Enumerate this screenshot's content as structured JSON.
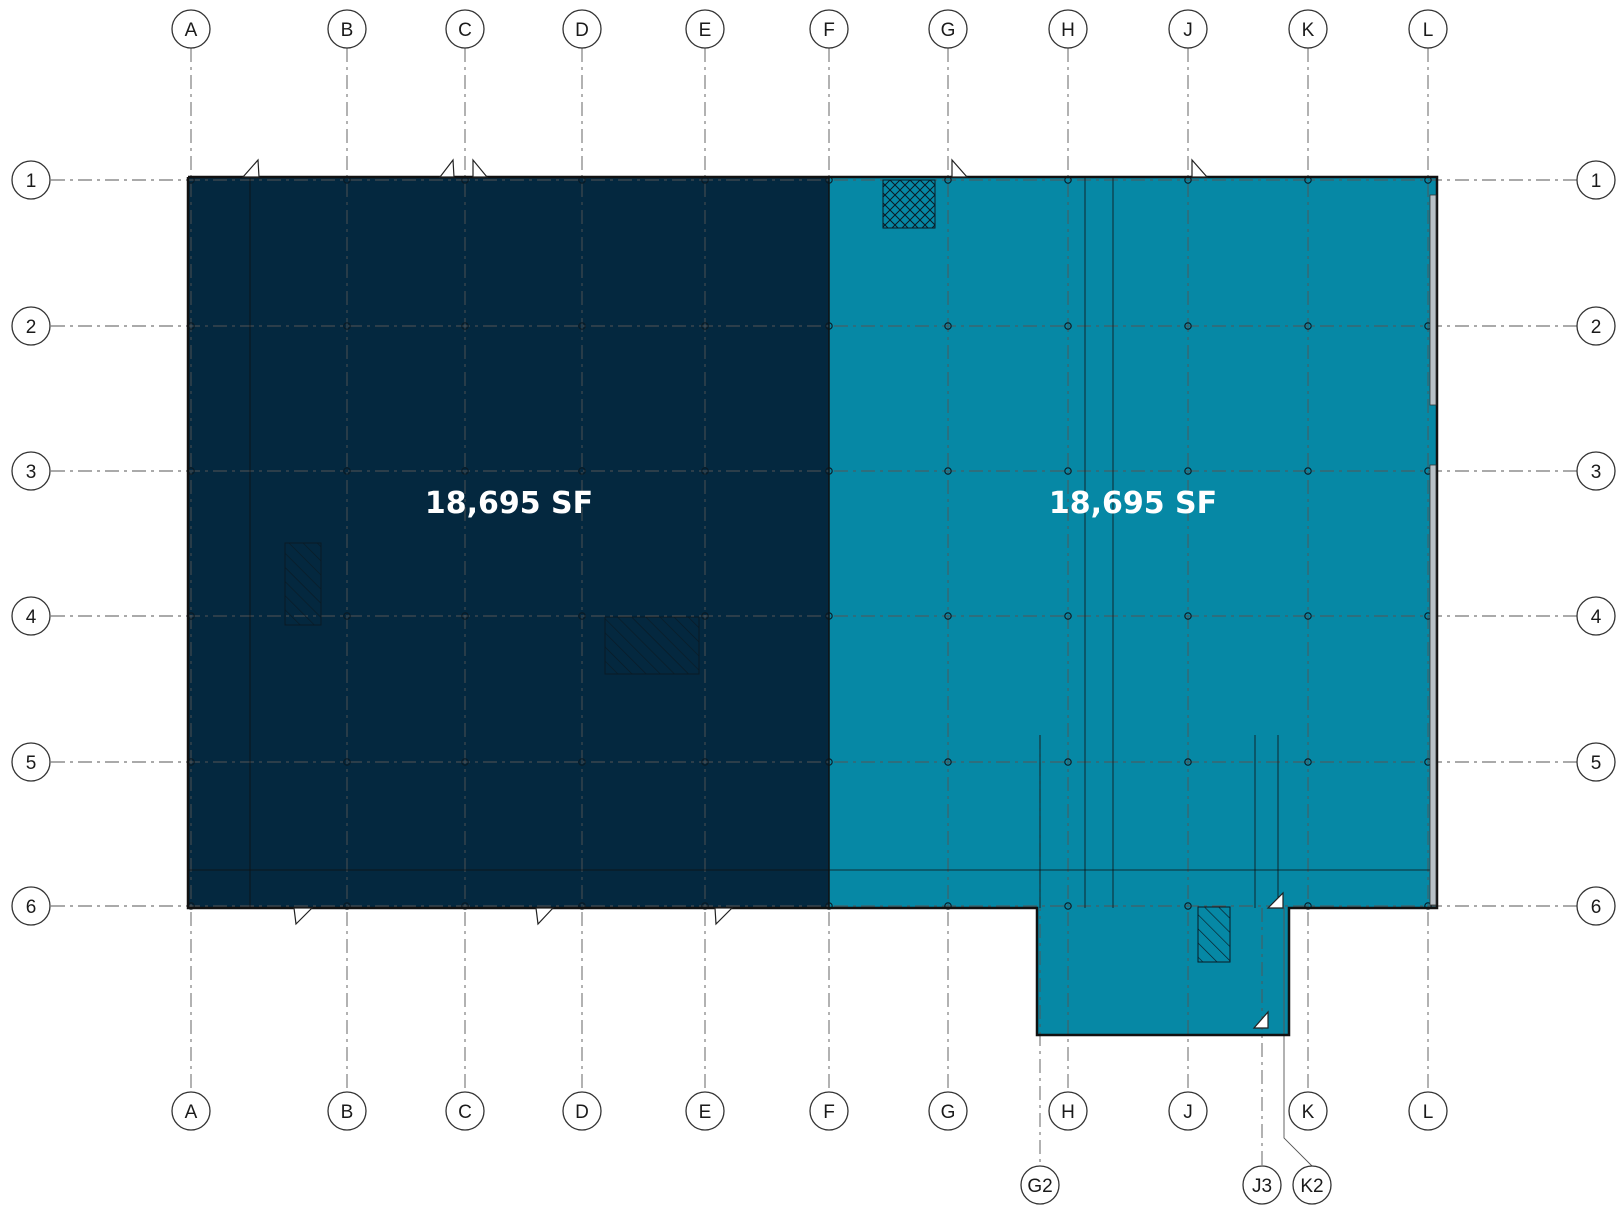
{
  "plan": {
    "grid_columns": [
      "A",
      "B",
      "C",
      "D",
      "E",
      "F",
      "G",
      "H",
      "J",
      "K",
      "L"
    ],
    "grid_rows": [
      "1",
      "2",
      "3",
      "4",
      "5",
      "6"
    ],
    "secondary_grid": [
      "G2",
      "J3",
      "K2"
    ],
    "spaces": [
      {
        "area_label": "18,695 SF",
        "color": "#04283f"
      },
      {
        "area_label": "18,695 SF",
        "color": "#0688a5"
      }
    ],
    "colors": {
      "grid_line": "#555555",
      "bubble_stroke": "#333333",
      "wall": "#111111",
      "hatch": "#0a1a24",
      "background": "#ffffff"
    }
  }
}
